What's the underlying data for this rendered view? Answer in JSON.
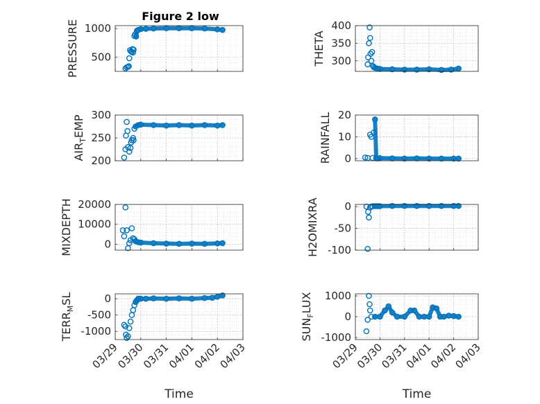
{
  "figure_title": "Figure 2 low",
  "x_axis_label": "Time",
  "x_tick_labels": [
    "03/29",
    "03/30",
    "03/31",
    "04/01",
    "04/02",
    "04/03"
  ],
  "marker_color": "#0072bd",
  "chart_data": [
    {
      "type": "scatter",
      "id": "pressure",
      "ylabel": "PRESSURE",
      "ylabel_parts": [
        {
          "t": "PRESSURE",
          "sub": false
        }
      ],
      "title": "Figure 2 low",
      "xlabel": "",
      "xlim": [
        0,
        5
      ],
      "ylim": [
        250,
        1050
      ],
      "yticks": [
        500,
        1000
      ],
      "ytick_labels": [
        "500",
        "1000"
      ],
      "x": [
        0.4,
        0.45,
        0.5,
        0.53,
        0.55,
        0.58,
        0.62,
        0.65,
        0.68,
        0.7,
        0.72,
        0.75,
        0.78,
        0.82,
        0.85,
        0.9,
        1.0,
        1.2,
        1.5,
        2.0,
        2.5,
        3.0,
        3.5,
        4.0,
        4.2
      ],
      "y": [
        300,
        320,
        330,
        340,
        480,
        620,
        600,
        590,
        640,
        580,
        630,
        870,
        900,
        860,
        960,
        975,
        990,
        995,
        1000,
        1005,
        1005,
        1005,
        1000,
        985,
        975
      ]
    },
    {
      "type": "scatter",
      "id": "theta",
      "ylabel": "THETA",
      "ylabel_parts": [
        {
          "t": "THETA",
          "sub": false
        }
      ],
      "xlim": [
        0,
        5
      ],
      "ylim": [
        270,
        400
      ],
      "yticks": [
        300,
        350,
        400
      ],
      "ytick_labels": [
        "300",
        "350",
        "400"
      ],
      "x": [
        0.5,
        0.52,
        0.55,
        0.58,
        0.6,
        0.62,
        0.65,
        0.68,
        0.72,
        0.75,
        0.8,
        0.9,
        1.0,
        1.5,
        2.0,
        2.5,
        3.0,
        3.5,
        3.9,
        4.2
      ],
      "y": [
        290,
        310,
        350,
        395,
        365,
        320,
        300,
        325,
        285,
        282,
        280,
        278,
        277,
        276,
        275,
        275,
        276,
        274,
        275,
        278
      ]
    },
    {
      "type": "scatter",
      "id": "air-temp",
      "ylabel": "AIR_TEMP",
      "ylabel_parts": [
        {
          "t": "AIR",
          "sub": false
        },
        {
          "t": "T",
          "sub": true
        },
        {
          "t": "EMP",
          "sub": false
        }
      ],
      "xlim": [
        0,
        5
      ],
      "ylim": [
        200,
        300
      ],
      "yticks": [
        200,
        250,
        300
      ],
      "ytick_labels": [
        "200",
        "250",
        "300"
      ],
      "x": [
        0.35,
        0.4,
        0.42,
        0.45,
        0.48,
        0.5,
        0.55,
        0.6,
        0.62,
        0.65,
        0.7,
        0.72,
        0.75,
        0.8,
        0.9,
        1.0,
        1.5,
        2.0,
        2.5,
        3.0,
        3.5,
        4.0,
        4.2
      ],
      "y": [
        207,
        225,
        255,
        285,
        265,
        230,
        220,
        228,
        240,
        245,
        250,
        245,
        270,
        275,
        278,
        279,
        278,
        277,
        278,
        277,
        278,
        277,
        278
      ]
    },
    {
      "type": "scatter",
      "id": "rainfall",
      "ylabel": "RAINFALL",
      "ylabel_parts": [
        {
          "t": "RAINFALL",
          "sub": false
        }
      ],
      "xlim": [
        0,
        5
      ],
      "ylim": [
        -1,
        20
      ],
      "yticks": [
        0,
        10,
        20
      ],
      "ytick_labels": [
        "0",
        "10",
        "20"
      ],
      "x": [
        0.4,
        0.5,
        0.6,
        0.65,
        0.7,
        0.75,
        0.8,
        0.85,
        0.9,
        1.0,
        1.5,
        2.0,
        2.5,
        3.0,
        3.5,
        4.0,
        4.2
      ],
      "y": [
        0.5,
        0.3,
        11,
        10,
        0.3,
        12,
        18,
        0.2,
        0.1,
        0.2,
        0.1,
        0,
        0.1,
        0,
        0,
        0,
        0
      ]
    },
    {
      "type": "scatter",
      "id": "mixdepth",
      "ylabel": "MIXDEPTH",
      "ylabel_parts": [
        {
          "t": "MIXDEPTH",
          "sub": false
        }
      ],
      "xlim": [
        0,
        5
      ],
      "ylim": [
        -3000,
        20000
      ],
      "yticks": [
        0,
        10000,
        20000
      ],
      "ytick_labels": [
        "0",
        "10000",
        "20000"
      ],
      "x": [
        0.3,
        0.35,
        0.4,
        0.45,
        0.5,
        0.55,
        0.6,
        0.65,
        0.7,
        0.75,
        0.8,
        0.9,
        1.0,
        1.5,
        2.0,
        2.5,
        3.0,
        3.5,
        4.0,
        4.2
      ],
      "y": [
        7000,
        4000,
        18500,
        7000,
        -2000,
        500,
        2000,
        8000,
        3000,
        2500,
        1500,
        1000,
        800,
        500,
        300,
        200,
        300,
        200,
        400,
        500
      ]
    },
    {
      "type": "scatter",
      "id": "h2omixra",
      "ylabel": "H2OMIXRA",
      "ylabel_parts": [
        {
          "t": "H2OMIXRA",
          "sub": false
        }
      ],
      "xlim": [
        0,
        5
      ],
      "ylim": [
        -100,
        5
      ],
      "yticks": [
        -100,
        -50,
        0
      ],
      "ytick_labels": [
        "-100",
        "-50",
        "0"
      ],
      "x": [
        0.45,
        0.5,
        0.52,
        0.55,
        0.6,
        0.65,
        0.7,
        0.8,
        0.9,
        1.0,
        1.5,
        2.0,
        2.5,
        3.0,
        3.5,
        4.0,
        4.2
      ],
      "y": [
        0,
        -97,
        -12,
        -25,
        -2,
        0,
        1,
        1,
        1,
        1,
        1.5,
        1.5,
        1.5,
        1.5,
        1.5,
        1.5,
        1.5
      ]
    },
    {
      "type": "scatter",
      "id": "terr-msl",
      "ylabel": "TERR_MSL",
      "ylabel_parts": [
        {
          "t": "TERR",
          "sub": false
        },
        {
          "t": "M",
          "sub": true
        },
        {
          "t": "SL",
          "sub": false
        }
      ],
      "xlim": [
        0,
        5
      ],
      "ylim": [
        -1250,
        150
      ],
      "yticks": [
        -1000,
        -500,
        0
      ],
      "ytick_labels": [
        "-1000",
        "-500",
        "0"
      ],
      "x": [
        0.35,
        0.4,
        0.42,
        0.45,
        0.5,
        0.55,
        0.6,
        0.65,
        0.7,
        0.75,
        0.8,
        0.85,
        0.9,
        1.0,
        1.2,
        1.5,
        2.0,
        2.5,
        3.0,
        3.5,
        3.8,
        4.0,
        4.2
      ],
      "y": [
        -800,
        -850,
        -1100,
        -1200,
        -1150,
        -900,
        -700,
        -500,
        -350,
        -200,
        -100,
        -50,
        0,
        0,
        0,
        10,
        0,
        10,
        0,
        20,
        30,
        60,
        100
      ]
    },
    {
      "type": "scatter",
      "id": "sun-flux",
      "ylabel": "SUN_FLUX",
      "ylabel_parts": [
        {
          "t": "SUN",
          "sub": false
        },
        {
          "t": "F",
          "sub": true
        },
        {
          "t": "LUX",
          "sub": false
        }
      ],
      "xlim": [
        0,
        5
      ],
      "ylim": [
        -1100,
        1100
      ],
      "yticks": [
        -1000,
        0,
        1000
      ],
      "ytick_labels": [
        "-1000",
        "0",
        "1000"
      ],
      "x": [
        0.45,
        0.5,
        0.55,
        0.58,
        0.6,
        0.65,
        0.8,
        1.0,
        1.2,
        1.35,
        1.5,
        1.7,
        2.0,
        2.25,
        2.4,
        2.6,
        2.8,
        3.0,
        3.15,
        3.3,
        3.45,
        3.6,
        3.8,
        4.0,
        4.2
      ],
      "y": [
        -700,
        -150,
        1000,
        600,
        300,
        0,
        0,
        0,
        300,
        500,
        200,
        0,
        0,
        300,
        300,
        0,
        0,
        0,
        450,
        400,
        0,
        0,
        50,
        30,
        0
      ]
    }
  ]
}
